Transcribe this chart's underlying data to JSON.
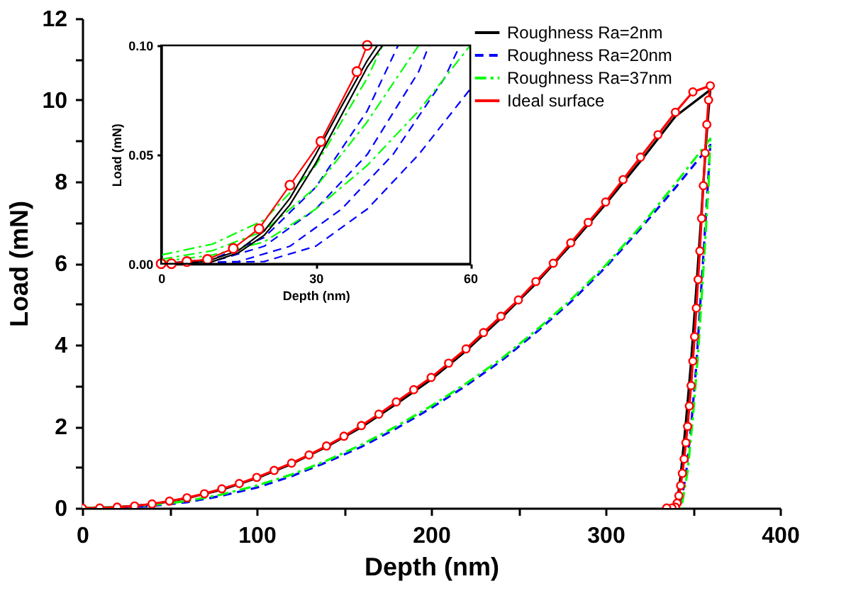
{
  "chart_data": [
    {
      "type": "line",
      "xlabel": "Depth (nm)",
      "ylabel": "Load (mN)",
      "xlim": [
        0,
        400
      ],
      "ylim": [
        0,
        12
      ],
      "xticks": [
        0,
        {
          "value": 50,
          "label": null
        },
        100,
        {
          "value": 150,
          "label": null
        },
        200,
        {
          "value": 250,
          "label": null
        },
        300,
        {
          "value": 350,
          "label": null
        },
        400
      ],
      "yticks": [
        0,
        {
          "value": 1,
          "label": null
        },
        2,
        {
          "value": 3,
          "label": null
        },
        4,
        {
          "value": 5,
          "label": null
        },
        6,
        {
          "value": 7,
          "label": null
        },
        8,
        {
          "value": 9,
          "label": null
        },
        10,
        {
          "value": 11,
          "label": null
        },
        12
      ],
      "grid": false,
      "legend": "top right",
      "series": [
        {
          "name": "Roughness Ra=2nm",
          "color": "#000000",
          "line_style": "solid",
          "marker": "none",
          "x": [
            0,
            20,
            40,
            60,
            80,
            100,
            120,
            140,
            160,
            180,
            200,
            220,
            240,
            260,
            280,
            300,
            320,
            340,
            360,
            358,
            355,
            352,
            349,
            346,
            343,
            341,
            340
          ],
          "values": [
            0,
            0.02,
            0.09,
            0.24,
            0.45,
            0.73,
            1.08,
            1.5,
            1.98,
            2.55,
            3.15,
            3.85,
            4.65,
            5.5,
            6.45,
            7.45,
            8.5,
            9.6,
            10.25,
            9.2,
            7.3,
            5.4,
            3.6,
            2.1,
            0.8,
            0.15,
            0
          ]
        },
        {
          "name": "Roughness Ra=20nm",
          "color": "#0000ff",
          "line_style": "dashed",
          "marker": "none",
          "x": [
            0,
            20,
            40,
            60,
            80,
            100,
            120,
            140,
            160,
            180,
            200,
            220,
            240,
            260,
            280,
            300,
            320,
            340,
            360,
            358,
            355,
            352,
            349,
            346,
            343,
            342
          ],
          "values": [
            0,
            0.01,
            0.05,
            0.14,
            0.3,
            0.5,
            0.78,
            1.12,
            1.5,
            1.95,
            2.45,
            3.0,
            3.6,
            4.3,
            5.05,
            5.9,
            6.85,
            7.85,
            8.9,
            7.5,
            5.5,
            3.5,
            2.0,
            0.8,
            0.1,
            0
          ]
        },
        {
          "name": "Roughness Ra=37nm",
          "color": "#00ff00",
          "line_style": "dashdot",
          "marker": "none",
          "x": [
            0,
            20,
            40,
            60,
            80,
            100,
            120,
            140,
            160,
            180,
            200,
            220,
            240,
            260,
            280,
            300,
            320,
            340,
            360,
            359,
            356,
            353,
            350,
            347,
            344,
            343
          ],
          "values": [
            0,
            0.02,
            0.07,
            0.17,
            0.33,
            0.55,
            0.82,
            1.16,
            1.55,
            2.0,
            2.5,
            3.05,
            3.65,
            4.35,
            5.1,
            5.95,
            6.9,
            7.95,
            9.05,
            7.9,
            5.8,
            3.8,
            2.2,
            0.9,
            0.15,
            0
          ]
        },
        {
          "name": "Ideal surface",
          "color": "#ff0000",
          "line_style": "solid",
          "marker": "circle",
          "x": [
            0,
            10,
            20,
            30,
            40,
            50,
            60,
            70,
            80,
            90,
            100,
            110,
            120,
            130,
            140,
            150,
            160,
            170,
            180,
            190,
            200,
            210,
            220,
            230,
            240,
            250,
            260,
            270,
            280,
            290,
            300,
            310,
            320,
            330,
            340,
            350,
            360,
            359,
            358,
            357,
            356,
            355,
            354,
            353,
            352,
            351,
            350,
            349,
            348,
            347,
            346,
            345,
            344,
            343,
            342,
            341,
            340,
            338,
            335
          ],
          "values": [
            0,
            0.0,
            0.02,
            0.05,
            0.1,
            0.17,
            0.25,
            0.35,
            0.47,
            0.6,
            0.75,
            0.92,
            1.1,
            1.3,
            1.52,
            1.76,
            2.02,
            2.3,
            2.6,
            2.9,
            3.2,
            3.55,
            3.9,
            4.3,
            4.7,
            5.1,
            5.55,
            6.0,
            6.5,
            7.0,
            7.5,
            8.05,
            8.6,
            9.15,
            9.7,
            10.2,
            10.35,
            10.0,
            9.4,
            8.7,
            7.9,
            7.1,
            6.3,
            5.6,
            4.9,
            4.2,
            3.6,
            3.0,
            2.5,
            2.0,
            1.6,
            1.2,
            0.85,
            0.55,
            0.3,
            0.12,
            0.02,
            0,
            0
          ]
        }
      ]
    },
    {
      "type": "line",
      "xlabel": "Depth (nm)",
      "ylabel": "Load (mN)",
      "xlim": [
        0,
        60
      ],
      "ylim": [
        0,
        0.1
      ],
      "xticks": [
        0,
        30,
        60
      ],
      "yticks": [
        {
          "value": 0,
          "label": "0.00"
        },
        {
          "value": 0.05,
          "label": "0.05"
        },
        {
          "value": 0.1,
          "label": "0.10"
        }
      ],
      "grid": false,
      "series": [
        {
          "color": "#0000ff",
          "line_style": "dashed",
          "marker": "none",
          "x": [
            0,
            10,
            20,
            30,
            40,
            46
          ],
          "values": [
            0,
            0.002,
            0.012,
            0.035,
            0.07,
            0.1
          ]
        },
        {
          "color": "#0000ff",
          "line_style": "dashed",
          "marker": "none",
          "x": [
            0,
            10,
            20,
            30,
            40,
            50,
            52
          ],
          "values": [
            0,
            0.001,
            0.008,
            0.025,
            0.05,
            0.088,
            0.1
          ]
        },
        {
          "color": "#0000ff",
          "line_style": "dashed",
          "marker": "none",
          "x": [
            0,
            15,
            25,
            35,
            45,
            55,
            58
          ],
          "values": [
            0,
            0.001,
            0.008,
            0.025,
            0.05,
            0.085,
            0.1
          ]
        },
        {
          "color": "#0000ff",
          "line_style": "dashed",
          "marker": "none",
          "x": [
            0,
            20,
            30,
            40,
            50,
            60
          ],
          "values": [
            0,
            0.001,
            0.008,
            0.025,
            0.05,
            0.08
          ]
        },
        {
          "color": "#00ff00",
          "line_style": "dashdot",
          "marker": "none",
          "x": [
            0,
            10,
            20,
            30,
            40,
            43
          ],
          "values": [
            0.004,
            0.009,
            0.02,
            0.045,
            0.085,
            0.1
          ]
        },
        {
          "color": "#00ff00",
          "line_style": "dashdot",
          "marker": "none",
          "x": [
            0,
            10,
            20,
            30,
            40,
            50
          ],
          "values": [
            0.002,
            0.006,
            0.015,
            0.035,
            0.065,
            0.1
          ]
        },
        {
          "color": "#00ff00",
          "line_style": "dashdot",
          "marker": "none",
          "x": [
            0,
            10,
            20,
            30,
            40,
            50,
            60
          ],
          "values": [
            0.001,
            0.004,
            0.01,
            0.025,
            0.045,
            0.07,
            0.1
          ]
        },
        {
          "color": "#000000",
          "line_style": "solid",
          "marker": "none",
          "x": [
            0,
            10,
            15,
            20,
            25,
            30,
            35,
            40,
            42
          ],
          "values": [
            0,
            0.002,
            0.006,
            0.015,
            0.03,
            0.05,
            0.072,
            0.093,
            0.1
          ]
        },
        {
          "color": "#000000",
          "line_style": "solid",
          "marker": "none",
          "x": [
            0,
            10,
            15,
            20,
            25,
            30,
            35,
            40,
            43
          ],
          "values": [
            0,
            0.001,
            0.005,
            0.013,
            0.027,
            0.046,
            0.068,
            0.09,
            0.1
          ]
        },
        {
          "color": "#ff0000",
          "line_style": "solid",
          "marker": "circle",
          "x": [
            0,
            2,
            5,
            9,
            14,
            19,
            25,
            31,
            38,
            40
          ],
          "values": [
            0,
            0,
            0.001,
            0.002,
            0.007,
            0.016,
            0.036,
            0.056,
            0.088,
            0.1
          ]
        }
      ]
    }
  ]
}
